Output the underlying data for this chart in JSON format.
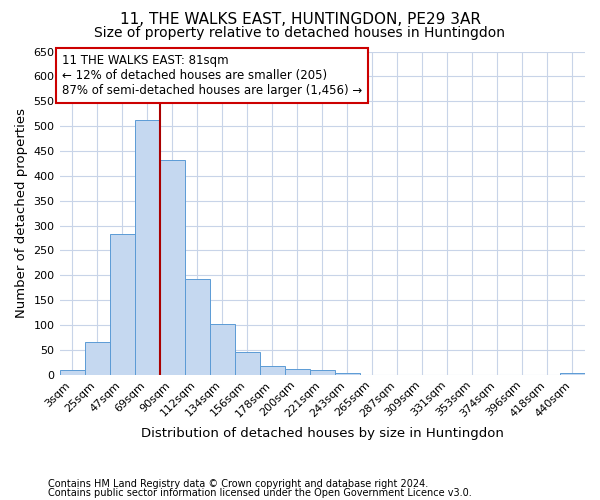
{
  "title": "11, THE WALKS EAST, HUNTINGDON, PE29 3AR",
  "subtitle": "Size of property relative to detached houses in Huntingdon",
  "xlabel": "Distribution of detached houses by size in Huntingdon",
  "ylabel": "Number of detached properties",
  "footnote1": "Contains HM Land Registry data © Crown copyright and database right 2024.",
  "footnote2": "Contains public sector information licensed under the Open Government Licence v3.0.",
  "categories": [
    "3sqm",
    "25sqm",
    "47sqm",
    "69sqm",
    "90sqm",
    "112sqm",
    "134sqm",
    "156sqm",
    "178sqm",
    "200sqm",
    "221sqm",
    "243sqm",
    "265sqm",
    "287sqm",
    "309sqm",
    "331sqm",
    "353sqm",
    "374sqm",
    "396sqm",
    "418sqm",
    "440sqm"
  ],
  "values": [
    10,
    65,
    283,
    512,
    432,
    192,
    102,
    46,
    18,
    11,
    10,
    4,
    0,
    0,
    0,
    0,
    0,
    0,
    0,
    0,
    3
  ],
  "bar_color": "#c5d8f0",
  "bar_edge_color": "#5b9bd5",
  "grid_color": "#c8d4e8",
  "vline_x_index": 3,
  "vline_color": "#aa0000",
  "annotation_text": "11 THE WALKS EAST: 81sqm\n← 12% of detached houses are smaller (205)\n87% of semi-detached houses are larger (1,456) →",
  "annotation_box_color": "#ffffff",
  "annotation_box_edge": "#cc0000",
  "ylim": [
    0,
    650
  ],
  "yticks": [
    0,
    50,
    100,
    150,
    200,
    250,
    300,
    350,
    400,
    450,
    500,
    550,
    600,
    650
  ],
  "background_color": "#ffffff",
  "title_fontsize": 11,
  "subtitle_fontsize": 10,
  "axis_label_fontsize": 9.5,
  "tick_fontsize": 8,
  "footnote_fontsize": 7,
  "annot_fontsize": 8.5
}
